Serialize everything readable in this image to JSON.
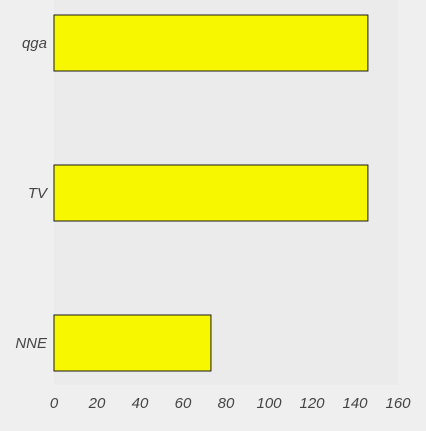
{
  "chart_data": {
    "type": "bar",
    "orientation": "horizontal",
    "categories": [
      "qga",
      "TV",
      "NNE"
    ],
    "values": [
      146,
      146,
      73
    ],
    "xlim": [
      0,
      160
    ],
    "x_ticks": [
      "0",
      "20",
      "40",
      "60",
      "80",
      "100",
      "120",
      "140",
      "160"
    ],
    "title": "",
    "xlabel": "",
    "ylabel": "",
    "grid": false,
    "bar_color": "#f7f700",
    "bar_edge_color": "#1a1a1a",
    "plot_background": "#ebebeb",
    "page_background": "#efefef"
  }
}
